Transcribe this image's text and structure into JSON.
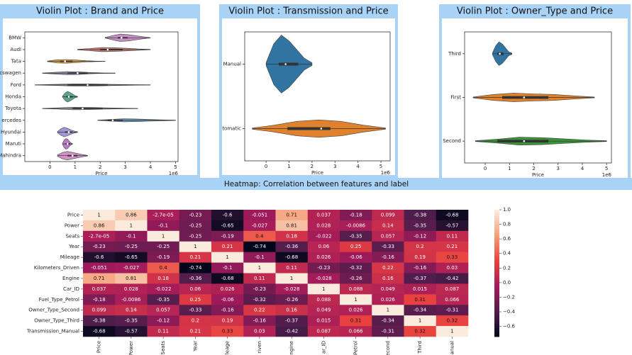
{
  "chart_data": [
    {
      "type": "violin",
      "title": "Violin Plot : Brand and Price",
      "xlabel": "Price",
      "x_offset_label": "1e6",
      "categories": [
        "BMW",
        "Audi",
        "Tata",
        "cswagen",
        "Ford",
        "Honda",
        "Toyota",
        "ercedes",
        "Hyundai",
        "Maruti",
        "Mahindra"
      ],
      "violins": [
        {
          "color": "#c58fc4",
          "stats": [
            2.2,
            2.7,
            2.85,
            3.1,
            4.0
          ],
          "density": [
            0.05,
            0.4,
            0.7,
            0.6,
            0.4,
            0.2,
            0.03
          ]
        },
        {
          "color": "#c47a6e",
          "stats": [
            1.1,
            2.0,
            2.3,
            2.9,
            4.0
          ],
          "density": [
            0.05,
            0.2,
            0.4,
            0.35,
            0.25,
            0.12,
            0.03
          ]
        },
        {
          "color": "#e2a34a",
          "stats": [
            -0.1,
            0.4,
            0.6,
            0.9,
            2.2
          ],
          "density": [
            0.05,
            0.3,
            0.35,
            0.25,
            0.12,
            0.05,
            0.02
          ]
        },
        {
          "color": "#9a8fb0",
          "stats": [
            -0.3,
            0.7,
            1.1,
            1.5,
            2.6
          ],
          "density": [
            0.03,
            0.15,
            0.3,
            0.25,
            0.12,
            0.05,
            0.02
          ]
        },
        {
          "color": "#9a9a9a",
          "stats": [
            -0.6,
            0.7,
            1.5,
            2.3,
            4.0
          ],
          "density": [
            0.02,
            0.1,
            0.2,
            0.2,
            0.12,
            0.06,
            0.02
          ]
        },
        {
          "color": "#5aa585",
          "stats": [
            0.5,
            0.65,
            0.75,
            0.9,
            1.1
          ],
          "density": [
            0.1,
            0.7,
            1,
            0.8,
            0.5,
            0.2,
            0.05
          ]
        },
        {
          "color": "#a8a8a8",
          "stats": [
            -0.3,
            0.9,
            1.3,
            2.1,
            3.5
          ],
          "density": [
            0.02,
            0.12,
            0.25,
            0.2,
            0.12,
            0.06,
            0.02
          ]
        },
        {
          "color": "#6a94b8",
          "stats": [
            1.9,
            2.3,
            2.5,
            2.9,
            5.0
          ],
          "density": [
            0.02,
            0.15,
            0.3,
            0.25,
            0.15,
            0.08,
            0.02
          ]
        },
        {
          "color": "#a296d6",
          "stats": [
            0.3,
            0.6,
            0.75,
            0.9,
            1.1
          ],
          "density": [
            0.1,
            0.6,
            0.9,
            0.7,
            0.4,
            0.2,
            0.05
          ]
        },
        {
          "color": "#b97cc9",
          "stats": [
            0.5,
            0.62,
            0.7,
            0.8,
            0.9
          ],
          "density": [
            0.1,
            0.7,
            1,
            0.9,
            0.5,
            0.2,
            0.05
          ]
        },
        {
          "color": "#d690c8",
          "stats": [
            0.3,
            0.7,
            0.9,
            1.1,
            1.5
          ],
          "density": [
            0.1,
            0.6,
            0.8,
            0.6,
            0.4,
            0.2,
            0.05
          ]
        }
      ],
      "xlim": [
        -1.0,
        5.1
      ],
      "xticks": [
        0,
        1,
        2,
        3,
        4,
        5
      ]
    },
    {
      "type": "violin",
      "title": "Violin Plot : Transmission and Price",
      "xlabel": "Price",
      "x_offset_label": "1e6",
      "categories": [
        "Manual",
        "tomatic"
      ],
      "violins": [
        {
          "color": "#3274a1",
          "stats": [
            0,
            0.55,
            0.85,
            1.4,
            2.0
          ],
          "density": [
            0.05,
            0.7,
            1,
            0.8,
            0.5,
            0.2,
            0.05
          ]
        },
        {
          "color": "#e1812c",
          "stats": [
            -0.6,
            0.93,
            2.4,
            2.8,
            5.2
          ],
          "density": [
            0.02,
            0.12,
            0.25,
            0.3,
            0.25,
            0.12,
            0.02
          ]
        }
      ],
      "xlim": [
        -0.93,
        5.4
      ],
      "xticks": [
        0,
        1,
        2,
        3,
        4,
        5
      ]
    },
    {
      "type": "violin",
      "title": "Violin Plot : Owner_Type and Price",
      "xlabel": "Price",
      "x_offset_label": "1e6",
      "categories": [
        "Third",
        "First",
        "Second"
      ],
      "violins": [
        {
          "color": "#3274a1",
          "stats": [
            0.3,
            0.5,
            0.6,
            0.75,
            1.1
          ],
          "density": [
            0.05,
            0.4,
            0.6,
            0.5,
            0.3,
            0.1,
            0.03
          ]
        },
        {
          "color": "#e1812c",
          "stats": [
            -0.5,
            0.7,
            1.6,
            2.6,
            4.5
          ],
          "density": [
            0.02,
            0.15,
            0.22,
            0.18,
            0.15,
            0.08,
            0.02
          ]
        },
        {
          "color": "#3a923a",
          "stats": [
            -0.4,
            0.5,
            1.6,
            2.6,
            5.0
          ],
          "density": [
            0.02,
            0.1,
            0.2,
            0.18,
            0.12,
            0.06,
            0.02
          ]
        }
      ],
      "xlim": [
        -0.85,
        5.2
      ],
      "xticks": [
        0,
        1,
        2,
        3,
        4,
        5
      ]
    },
    {
      "type": "heatmap",
      "title": "Heatmap: Correlation between features and label",
      "colormap": "rocket",
      "row_labels": [
        "Price",
        "Power",
        "Seats",
        "Year",
        "Mileage",
        "Kilometers_Driven",
        "Engine",
        "Car_ID",
        "Fuel_Type_Petrol",
        "Owner_Type_Second",
        "Owner_Type_Third",
        "Transmission_Manual"
      ],
      "col_labels": [
        "Price",
        "Power",
        "Seats",
        "Year",
        "leage",
        "riven",
        "ngine",
        "ar_ID",
        "Petrol",
        "econd",
        "Third",
        "anual"
      ],
      "values": [
        [
          1,
          0.86,
          -2.7e-05,
          -0.23,
          -0.6,
          -0.051,
          0.71,
          0.037,
          -0.18,
          0.099,
          -0.38,
          -0.68
        ],
        [
          0.86,
          1,
          -0.1,
          -0.25,
          -0.65,
          -0.027,
          0.81,
          0.028,
          -0.0086,
          0.14,
          -0.35,
          -0.57
        ],
        [
          -2.7e-05,
          -0.1,
          1,
          -0.25,
          -0.19,
          0.4,
          0.18,
          -0.022,
          -0.35,
          0.057,
          -0.12,
          0.11
        ],
        [
          -0.23,
          -0.25,
          -0.25,
          1,
          0.21,
          -0.74,
          -0.36,
          0.06,
          0.25,
          -0.33,
          0.2,
          0.21
        ],
        [
          -0.6,
          -0.65,
          -0.19,
          0.21,
          1,
          -0.1,
          -0.68,
          0.026,
          -0.06,
          -0.16,
          0.19,
          0.33
        ],
        [
          -0.051,
          -0.027,
          0.4,
          -0.74,
          -0.1,
          1,
          0.11,
          -0.23,
          -0.32,
          0.22,
          -0.16,
          0.03
        ],
        [
          0.71,
          0.81,
          0.18,
          -0.36,
          -0.68,
          0.11,
          1,
          -0.028,
          -0.26,
          0.16,
          -0.37,
          -0.42
        ],
        [
          0.037,
          0.028,
          -0.022,
          0.06,
          0.026,
          -0.23,
          -0.028,
          1,
          0.088,
          0.049,
          0.015,
          0.087
        ],
        [
          -0.18,
          -0.0086,
          -0.35,
          0.25,
          -0.06,
          -0.32,
          -0.26,
          0.088,
          1,
          0.026,
          0.31,
          0.066
        ],
        [
          0.099,
          0.14,
          0.057,
          -0.33,
          -0.16,
          0.22,
          0.16,
          0.049,
          0.026,
          1,
          -0.34,
          -0.31
        ],
        [
          -0.38,
          -0.35,
          -0.12,
          0.2,
          0.19,
          -0.16,
          -0.37,
          0.015,
          0.31,
          -0.34,
          1,
          0.32
        ],
        [
          -0.68,
          -0.57,
          0.11,
          0.21,
          0.33,
          0.03,
          -0.42,
          0.087,
          0.066,
          -0.31,
          0.32,
          1
        ]
      ],
      "value_labels": [
        [
          "1",
          "0.86",
          "-2.7e-05",
          "-0.23",
          "-0.6",
          "-0.051",
          "0.71",
          "0.037",
          "-0.18",
          "0.099",
          "-0.38",
          "-0.68"
        ],
        [
          "0.86",
          "1",
          "-0.1",
          "-0.25",
          "-0.65",
          "-0.027",
          "0.81",
          "0.028",
          "-0.0086",
          "0.14",
          "-0.35",
          "-0.57"
        ],
        [
          "-2.7e-05",
          "-0.1",
          "1",
          "-0.25",
          "-0.19",
          "0.4",
          "0.18",
          "-0.022",
          "-0.35",
          "0.057",
          "-0.12",
          "0.11"
        ],
        [
          "-0.23",
          "-0.25",
          "-0.25",
          "1",
          "0.21",
          "-0.74",
          "-0.36",
          "0.06",
          "0.25",
          "-0.33",
          "0.2",
          "0.21"
        ],
        [
          "-0.6",
          "-0.65",
          "-0.19",
          "0.21",
          "1",
          "-0.1",
          "-0.68",
          "0.026",
          "-0.06",
          "-0.16",
          "0.19",
          "0.33"
        ],
        [
          "-0.051",
          "-0.027",
          "0.4",
          "-0.74",
          "-0.1",
          "1",
          "0.11",
          "-0.23",
          "-0.32",
          "0.22",
          "-0.16",
          "0.03"
        ],
        [
          "0.71",
          "0.81",
          "0.18",
          "-0.36",
          "-0.68",
          "0.11",
          "1",
          "-0.028",
          "-0.26",
          "0.16",
          "-0.37",
          "-0.42"
        ],
        [
          "0.037",
          "0.028",
          "-0.022",
          "0.06",
          "0.026",
          "-0.23",
          "-0.028",
          "1",
          "0.088",
          "0.049",
          "0.015",
          "0.087"
        ],
        [
          "-0.18",
          "-0.0086",
          "-0.35",
          "0.25",
          "-0.06",
          "-0.32",
          "-0.26",
          "0.088",
          "1",
          "0.026",
          "0.31",
          "0.066"
        ],
        [
          "0.099",
          "0.14",
          "0.057",
          "-0.33",
          "-0.16",
          "0.22",
          "0.16",
          "0.049",
          "0.026",
          "1",
          "-0.34",
          "-0.31"
        ],
        [
          "-0.38",
          "-0.35",
          "-0.12",
          "0.2",
          "0.19",
          "-0.16",
          "-0.37",
          "0.015",
          "0.31",
          "-0.34",
          "1",
          "0.32"
        ],
        [
          "-0.68",
          "-0.57",
          "0.11",
          "0.21",
          "0.33",
          "0.03",
          "-0.42",
          "0.087",
          "0.066",
          "-0.31",
          "0.32",
          "1"
        ]
      ],
      "zlim": [
        -0.74,
        1
      ],
      "zticks": [
        {
          "value": 1.0,
          "label": "1.0"
        },
        0.8,
        0.6,
        0.4,
        0.2,
        {
          "value": 0.0,
          "label": "0.0"
        },
        {
          "value": -0.2,
          "label": "−0.2"
        },
        {
          "value": -0.4,
          "label": "−0.4"
        },
        {
          "value": -0.6,
          "label": "−0.6"
        }
      ]
    }
  ]
}
